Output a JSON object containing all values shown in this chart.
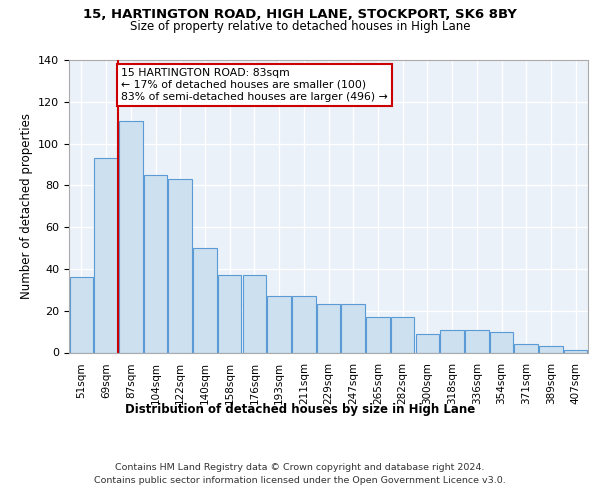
{
  "title1": "15, HARTINGTON ROAD, HIGH LANE, STOCKPORT, SK6 8BY",
  "title2": "Size of property relative to detached houses in High Lane",
  "xlabel": "Distribution of detached houses by size in High Lane",
  "ylabel": "Number of detached properties",
  "bar_labels": [
    "51sqm",
    "69sqm",
    "87sqm",
    "104sqm",
    "122sqm",
    "140sqm",
    "158sqm",
    "176sqm",
    "193sqm",
    "211sqm",
    "229sqm",
    "247sqm",
    "265sqm",
    "282sqm",
    "300sqm",
    "318sqm",
    "336sqm",
    "354sqm",
    "371sqm",
    "389sqm",
    "407sqm"
  ],
  "heights": [
    36,
    93,
    111,
    85,
    83,
    50,
    37,
    37,
    27,
    27,
    23,
    23,
    17,
    17,
    9,
    11,
    11,
    10,
    4,
    3,
    1
  ],
  "bar_color": "#cce0f0",
  "bar_edge_color": "#5b9bd5",
  "annotation_text": "15 HARTINGTON ROAD: 83sqm\n← 17% of detached houses are smaller (100)\n83% of semi-detached houses are larger (496) →",
  "annotation_edge_color": "#cc0000",
  "red_line_color": "#cc0000",
  "ylim": [
    0,
    140
  ],
  "yticks": [
    0,
    20,
    40,
    60,
    80,
    100,
    120,
    140
  ],
  "bg_color": "#eaf1f8",
  "grid_color": "#ffffff",
  "footer1": "Contains HM Land Registry data © Crown copyright and database right 2024.",
  "footer2": "Contains public sector information licensed under the Open Government Licence v3.0."
}
